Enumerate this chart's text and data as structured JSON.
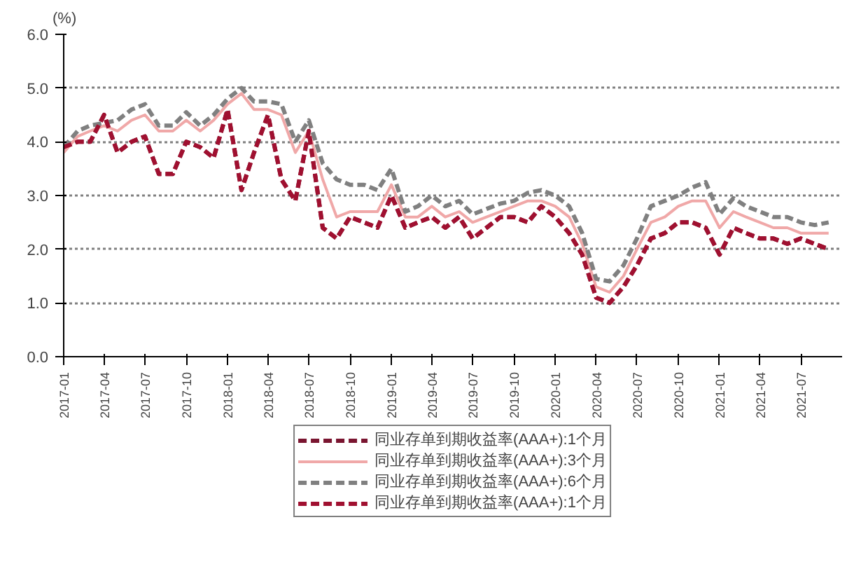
{
  "chart_data": {
    "type": "line",
    "ylabel": "(%)",
    "x": [
      "2017-01",
      "2017-02",
      "2017-03",
      "2017-04",
      "2017-05",
      "2017-06",
      "2017-07",
      "2017-08",
      "2017-09",
      "2017-10",
      "2017-11",
      "2017-12",
      "2018-01",
      "2018-02",
      "2018-03",
      "2018-04",
      "2018-05",
      "2018-06",
      "2018-07",
      "2018-08",
      "2018-09",
      "2018-10",
      "2018-11",
      "2018-12",
      "2019-01",
      "2019-02",
      "2019-03",
      "2019-04",
      "2019-05",
      "2019-06",
      "2019-07",
      "2019-08",
      "2019-09",
      "2019-10",
      "2019-11",
      "2019-12",
      "2020-01",
      "2020-02",
      "2020-03",
      "2020-04",
      "2020-05",
      "2020-06",
      "2020-07",
      "2020-08",
      "2020-09",
      "2020-10",
      "2020-11",
      "2020-12",
      "2021-01",
      "2021-02",
      "2021-03",
      "2021-04",
      "2021-05",
      "2021-06",
      "2021-07",
      "2021-08",
      "2021-09"
    ],
    "series": [
      {
        "name": "同业存单到期收益率(AAA+):1个月",
        "color": "#7a1530",
        "line_style": "dashed",
        "values": [
          3.9,
          4.0,
          4.0,
          4.5,
          3.8,
          4.0,
          4.1,
          3.4,
          3.4,
          4.0,
          3.9,
          3.7,
          4.6,
          3.1,
          3.8,
          4.5,
          3.3,
          2.9,
          4.2,
          2.4,
          2.2,
          2.6,
          2.5,
          2.4,
          3.0,
          2.4,
          2.5,
          2.6,
          2.4,
          2.6,
          2.2,
          2.4,
          2.6,
          2.6,
          2.5,
          2.8,
          2.6,
          2.3,
          1.9,
          1.1,
          1.0,
          1.3,
          1.7,
          2.2,
          2.3,
          2.5,
          2.5,
          2.4,
          1.9,
          2.4,
          2.3,
          2.2,
          2.2,
          2.1,
          2.2,
          2.1,
          2.0
        ]
      },
      {
        "name": "同业存单到期收益率(AAA+):3个月",
        "color": "#f0a8a8",
        "line_style": "solid",
        "values": [
          3.8,
          4.1,
          4.2,
          4.3,
          4.2,
          4.4,
          4.5,
          4.2,
          4.2,
          4.4,
          4.2,
          4.4,
          4.7,
          4.9,
          4.6,
          4.6,
          4.5,
          3.8,
          4.2,
          3.3,
          2.6,
          2.7,
          2.7,
          2.7,
          3.2,
          2.6,
          2.6,
          2.8,
          2.6,
          2.7,
          2.5,
          2.6,
          2.7,
          2.8,
          2.9,
          2.9,
          2.8,
          2.6,
          2.1,
          1.3,
          1.2,
          1.5,
          2.0,
          2.5,
          2.6,
          2.8,
          2.9,
          2.9,
          2.4,
          2.7,
          2.6,
          2.5,
          2.4,
          2.4,
          2.3,
          2.3,
          2.3
        ]
      },
      {
        "name": "同业存单到期收益率(AAA+):6个月",
        "color": "#808080",
        "line_style": "dashed",
        "values": [
          3.9,
          4.2,
          4.3,
          4.35,
          4.4,
          4.6,
          4.7,
          4.3,
          4.3,
          4.55,
          4.3,
          4.5,
          4.8,
          5.0,
          4.75,
          4.75,
          4.7,
          4.0,
          4.4,
          3.6,
          3.3,
          3.2,
          3.2,
          3.1,
          3.5,
          2.7,
          2.8,
          3.0,
          2.8,
          2.9,
          2.65,
          2.75,
          2.85,
          2.9,
          3.05,
          3.1,
          3.0,
          2.8,
          2.3,
          1.45,
          1.4,
          1.7,
          2.2,
          2.8,
          2.9,
          3.0,
          3.15,
          3.25,
          2.65,
          2.95,
          2.8,
          2.7,
          2.6,
          2.6,
          2.5,
          2.45,
          2.5
        ]
      },
      {
        "name": "同业存单到期收益率(AAA+):1个月",
        "color": "#a01030",
        "line_style": "dashed",
        "values": [
          3.9,
          4.0,
          4.0,
          4.5,
          3.8,
          4.0,
          4.1,
          3.4,
          3.4,
          4.0,
          3.9,
          3.7,
          4.6,
          3.1,
          3.8,
          4.5,
          3.3,
          2.9,
          4.2,
          2.4,
          2.2,
          2.6,
          2.5,
          2.4,
          3.0,
          2.4,
          2.5,
          2.6,
          2.4,
          2.6,
          2.2,
          2.4,
          2.6,
          2.6,
          2.5,
          2.8,
          2.6,
          2.3,
          1.9,
          1.1,
          1.0,
          1.3,
          1.7,
          2.2,
          2.3,
          2.5,
          2.5,
          2.4,
          1.9,
          2.4,
          2.3,
          2.2,
          2.2,
          2.1,
          2.2,
          2.1,
          2.0
        ]
      }
    ],
    "xlim": [
      "2017-01",
      "2021-10"
    ],
    "xticks": [
      "2017-01",
      "2017-04",
      "2017-07",
      "2017-10",
      "2018-01",
      "2018-04",
      "2018-07",
      "2018-10",
      "2019-01",
      "2019-04",
      "2019-07",
      "2019-10",
      "2020-01",
      "2020-04",
      "2020-07",
      "2020-10",
      "2021-01",
      "2021-04",
      "2021-07"
    ],
    "ylim": [
      0,
      6
    ],
    "yticks": [
      {
        "value": 0,
        "label": "0.0"
      },
      {
        "value": 1,
        "label": "1.0"
      },
      {
        "value": 2,
        "label": "2.0"
      },
      {
        "value": 3,
        "label": "3.0"
      },
      {
        "value": 4,
        "label": "4.0"
      },
      {
        "value": 5,
        "label": "5.0"
      },
      {
        "value": 6,
        "label": "6.0"
      }
    ],
    "grid": "y",
    "legend": "bottom"
  }
}
